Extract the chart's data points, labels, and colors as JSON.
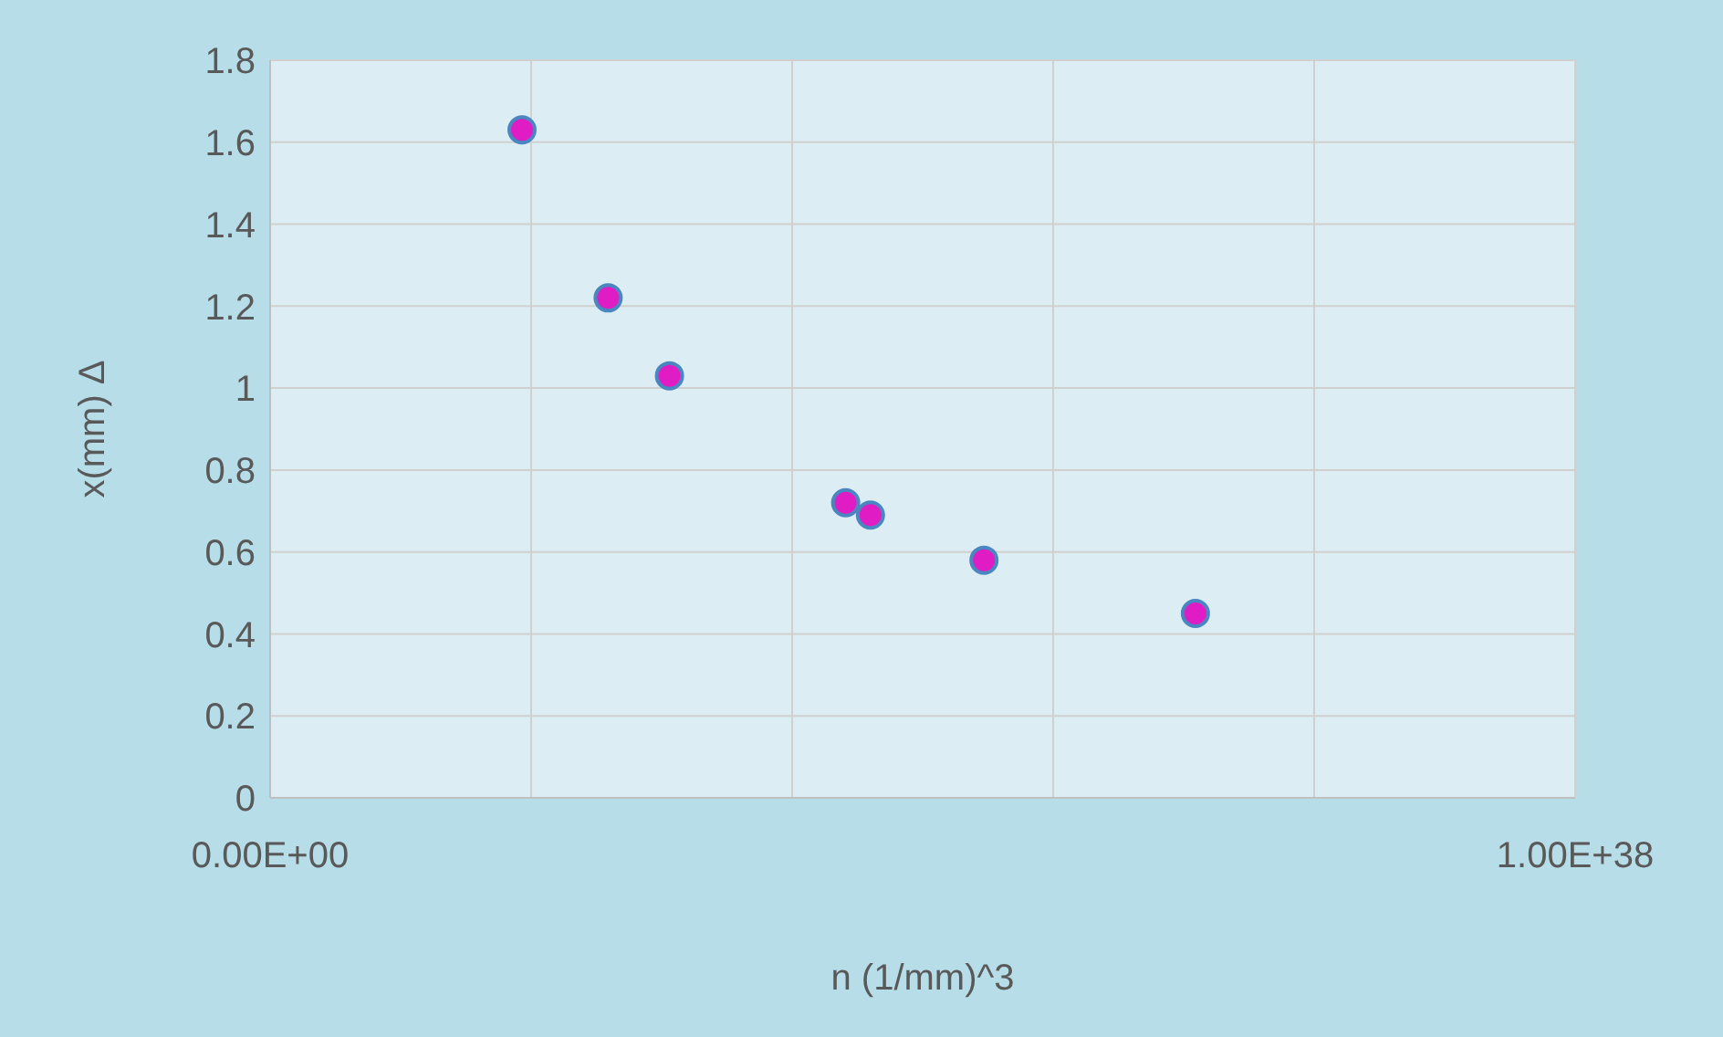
{
  "chart_data": {
    "type": "scatter",
    "xlabel": "n (1/mm)^3",
    "ylabel": "x(mm) Δ",
    "x": [
      1.93e+37,
      2.59e+37,
      3.06e+37,
      4.41e+37,
      4.6e+37,
      5.47e+37,
      7.09e+37
    ],
    "series": [
      {
        "color": "#e01cc4",
        "values": [
          1.63,
          1.22,
          1.03,
          0.72,
          0.69,
          0.58,
          0.45
        ]
      }
    ],
    "xlim": [
      0,
      1e+38
    ],
    "xticks": [
      {
        "value": 0,
        "label": "0.00E+00"
      },
      {
        "value": 2e+37,
        "label": null
      },
      {
        "value": 4e+37,
        "label": null
      },
      {
        "value": 6e+37,
        "label": null
      },
      {
        "value": 8e+37,
        "label": null
      },
      {
        "value": 1e+38,
        "label": "1.00E+38"
      }
    ],
    "ylim": [
      0,
      1.8
    ],
    "yticks": [
      {
        "value": 0,
        "label": "0"
      },
      {
        "value": 0.2,
        "label": "0.2"
      },
      {
        "value": 0.4,
        "label": "0.4"
      },
      {
        "value": 0.6,
        "label": "0.6"
      },
      {
        "value": 0.8,
        "label": "0.8"
      },
      {
        "value": 1,
        "label": "1"
      },
      {
        "value": 1.2,
        "label": "1.2"
      },
      {
        "value": 1.4,
        "label": "1.4"
      },
      {
        "value": 1.6,
        "label": "1.6"
      },
      {
        "value": 1.8,
        "label": "1.8"
      }
    ],
    "grid": true,
    "marker": "circle",
    "legend": false
  }
}
